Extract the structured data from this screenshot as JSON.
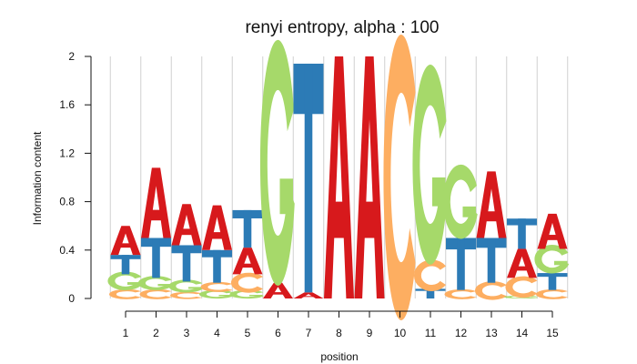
{
  "chart_data": {
    "type": "sequence-logo",
    "title": "renyi entropy, alpha : 100",
    "xlabel": "position",
    "ylabel": "Information content",
    "ylim": [
      0,
      2
    ],
    "yticks": [
      "0",
      "0.4",
      "0.8",
      "1.2",
      "1.6",
      "2"
    ],
    "positions": [
      1,
      2,
      3,
      4,
      5,
      6,
      7,
      8,
      9,
      10,
      11,
      12,
      13,
      14,
      15
    ],
    "grid": true,
    "letter_colors": {
      "A": "#d7191c",
      "C": "#fdae61",
      "G": "#a6d96a",
      "T": "#2c7bb6"
    },
    "stacks": [
      [
        {
          "letter": "C",
          "value": 0.07
        },
        {
          "letter": "G",
          "value": 0.13
        },
        {
          "letter": "T",
          "value": 0.16
        },
        {
          "letter": "A",
          "value": 0.24
        }
      ],
      [
        {
          "letter": "C",
          "value": 0.07
        },
        {
          "letter": "G",
          "value": 0.1
        },
        {
          "letter": "T",
          "value": 0.33
        },
        {
          "letter": "A",
          "value": 0.58
        }
      ],
      [
        {
          "letter": "C",
          "value": 0.05
        },
        {
          "letter": "G",
          "value": 0.09
        },
        {
          "letter": "T",
          "value": 0.3
        },
        {
          "letter": "A",
          "value": 0.34
        }
      ],
      [
        {
          "letter": "G",
          "value": 0.06
        },
        {
          "letter": "C",
          "value": 0.07
        },
        {
          "letter": "T",
          "value": 0.27
        },
        {
          "letter": "A",
          "value": 0.37
        }
      ],
      [
        {
          "letter": "G",
          "value": 0.06
        },
        {
          "letter": "C",
          "value": 0.14
        },
        {
          "letter": "A",
          "value": 0.22
        },
        {
          "letter": "T",
          "value": 0.31
        }
      ],
      [
        {
          "letter": "A",
          "value": 0.13
        },
        {
          "letter": "G",
          "value": 1.72
        }
      ],
      [
        {
          "letter": "A",
          "value": 0.05
        },
        {
          "letter": "T",
          "value": 1.89
        }
      ],
      [
        {
          "letter": "A",
          "value": 2.0
        }
      ],
      [
        {
          "letter": "A",
          "value": 2.0
        }
      ],
      [
        {
          "letter": "C",
          "value": 2.0
        }
      ],
      [
        {
          "letter": "T",
          "value": 0.08
        },
        {
          "letter": "C",
          "value": 0.22
        },
        {
          "letter": "G",
          "value": 1.4
        }
      ],
      [
        {
          "letter": "C",
          "value": 0.07
        },
        {
          "letter": "T",
          "value": 0.43
        },
        {
          "letter": "G",
          "value": 0.52
        }
      ],
      [
        {
          "letter": "C",
          "value": 0.13
        },
        {
          "letter": "T",
          "value": 0.37
        },
        {
          "letter": "A",
          "value": 0.55
        }
      ],
      [
        {
          "letter": "G",
          "value": 0.02
        },
        {
          "letter": "C",
          "value": 0.15
        },
        {
          "letter": "A",
          "value": 0.24
        },
        {
          "letter": "T",
          "value": 0.25
        }
      ],
      [
        {
          "letter": "C",
          "value": 0.07
        },
        {
          "letter": "T",
          "value": 0.14
        },
        {
          "letter": "G",
          "value": 0.2
        },
        {
          "letter": "A",
          "value": 0.29
        }
      ]
    ]
  }
}
